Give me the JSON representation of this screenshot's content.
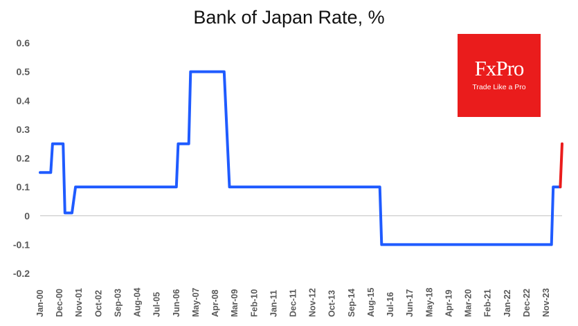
{
  "chart_data": {
    "type": "line",
    "title": "Bank of Japan Rate, %",
    "xlabel": "",
    "ylabel": "",
    "ylim": [
      -0.2,
      0.6
    ],
    "yticks": [
      "0.6",
      "0.5",
      "0.4",
      "0.3",
      "0.2",
      "0.1",
      "0",
      "-0.1",
      "-0.2"
    ],
    "xticks": [
      "Jan-00",
      "Dec-00",
      "Nov-01",
      "Oct-02",
      "Sep-03",
      "Aug-04",
      "Jul-05",
      "Jun-06",
      "May-07",
      "Apr-08",
      "Mar-09",
      "Feb-10",
      "Jan-11",
      "Dec-11",
      "Nov-12",
      "Oct-13",
      "Sep-14",
      "Aug-15",
      "Jul-16",
      "Jun-17",
      "May-18",
      "Apr-19",
      "Mar-20",
      "Feb-21",
      "Jan-22",
      "Dec-22",
      "Nov-23"
    ],
    "grid": false,
    "series": [
      {
        "color": "#1f5bff",
        "points": [
          [
            "Jan-00",
            0.15
          ],
          [
            "Jul-00",
            0.15
          ],
          [
            "Aug-00",
            0.25
          ],
          [
            "Feb-01",
            0.25
          ],
          [
            "Mar-01",
            0.01
          ],
          [
            "Jul-01",
            0.01
          ],
          [
            "Sep-01",
            0.1
          ],
          [
            "Jun-06",
            0.1
          ],
          [
            "Jul-06",
            0.25
          ],
          [
            "Jan-07",
            0.25
          ],
          [
            "Feb-07",
            0.5
          ],
          [
            "Sep-08",
            0.5
          ],
          [
            "Dec-08",
            0.1
          ],
          [
            "Jan-16",
            0.1
          ],
          [
            "Feb-16",
            -0.1
          ],
          [
            "Feb-24",
            -0.1
          ],
          [
            "Mar-24",
            0.1
          ],
          [
            "Jul-24",
            0.1
          ]
        ]
      },
      {
        "color": "#ea1c1c",
        "points": [
          [
            "Jul-24",
            0.1
          ],
          [
            "Aug-24",
            0.25
          ]
        ]
      }
    ]
  },
  "logo": {
    "brand": "FxPro",
    "tagline": "Trade Like a Pro",
    "color": "#ea1c1c"
  }
}
